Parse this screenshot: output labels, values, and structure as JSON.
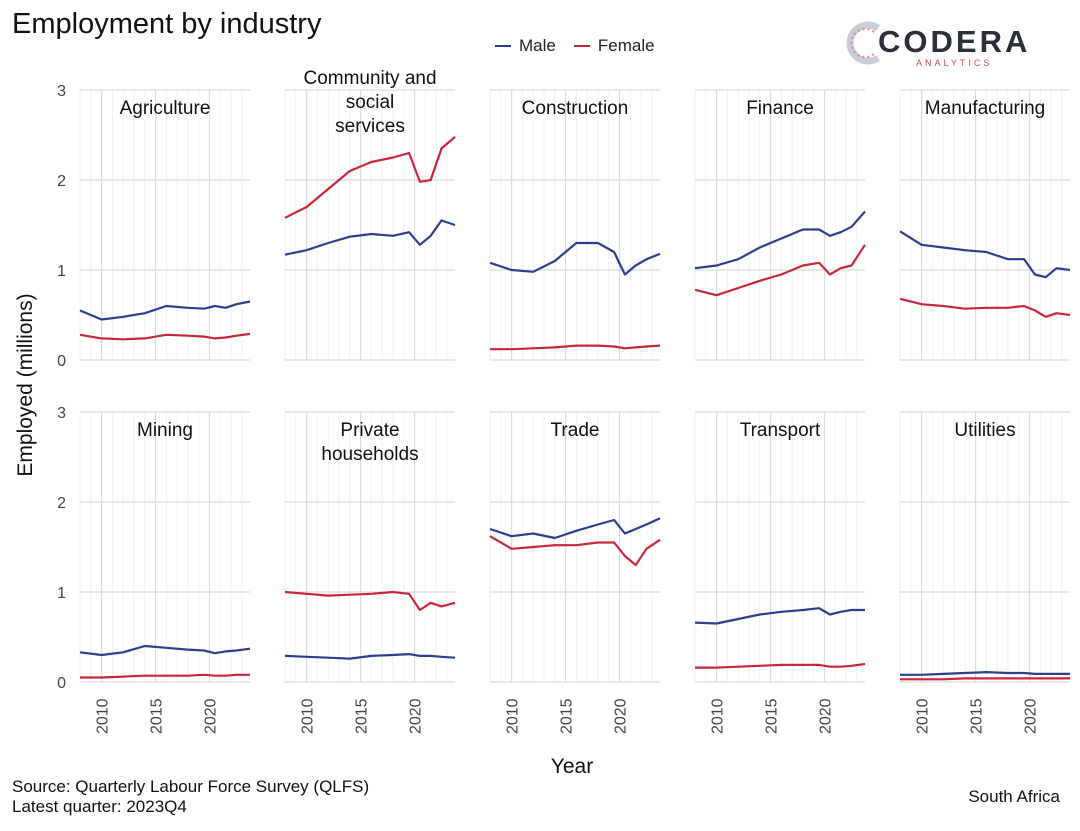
{
  "title": "Employment by industry",
  "legend": [
    {
      "label": "Male",
      "color": "#2d3e8f"
    },
    {
      "label": "Female",
      "color": "#c8263b"
    }
  ],
  "logo": {
    "word": "CODERA",
    "sub": "ANALYTICS"
  },
  "footer": {
    "source": "Source: Quarterly Labour Force Survey (QLFS)",
    "latest": "Latest quarter: 2023Q4",
    "country": "South Africa"
  },
  "chart_data": {
    "type": "line",
    "xlabel": "Year",
    "ylabel": "Employed (millions)",
    "xlim": [
      2008,
      2023.75
    ],
    "x_ticks": [
      2010,
      2015,
      2020
    ],
    "ylim": [
      0,
      3
    ],
    "y_ticks": [
      0,
      1,
      2,
      3
    ],
    "grid": true,
    "legend_position": "top",
    "x": [
      2008,
      2010,
      2012,
      2014,
      2016,
      2018,
      2019.5,
      2020.5,
      2021.5,
      2022.5,
      2023.75
    ],
    "panels": [
      {
        "title": "Agriculture",
        "series": [
          {
            "name": "Male",
            "values": [
              0.55,
              0.45,
              0.48,
              0.52,
              0.6,
              0.58,
              0.57,
              0.6,
              0.58,
              0.62,
              0.65
            ]
          },
          {
            "name": "Female",
            "values": [
              0.28,
              0.24,
              0.23,
              0.24,
              0.28,
              0.27,
              0.26,
              0.24,
              0.25,
              0.27,
              0.29
            ]
          }
        ]
      },
      {
        "title": "Community and social services",
        "series": [
          {
            "name": "Male",
            "values": [
              1.17,
              1.22,
              1.3,
              1.37,
              1.4,
              1.38,
              1.42,
              1.28,
              1.38,
              1.55,
              1.5
            ]
          },
          {
            "name": "Female",
            "values": [
              1.58,
              1.7,
              1.9,
              2.1,
              2.2,
              2.25,
              2.3,
              1.98,
              2.0,
              2.35,
              2.48
            ]
          }
        ]
      },
      {
        "title": "Construction",
        "series": [
          {
            "name": "Male",
            "values": [
              1.08,
              1.0,
              0.98,
              1.1,
              1.3,
              1.3,
              1.2,
              0.95,
              1.05,
              1.12,
              1.18
            ]
          },
          {
            "name": "Female",
            "values": [
              0.12,
              0.12,
              0.13,
              0.14,
              0.16,
              0.16,
              0.15,
              0.13,
              0.14,
              0.15,
              0.16
            ]
          }
        ]
      },
      {
        "title": "Finance",
        "series": [
          {
            "name": "Male",
            "values": [
              1.02,
              1.05,
              1.12,
              1.25,
              1.35,
              1.45,
              1.45,
              1.38,
              1.42,
              1.48,
              1.65
            ]
          },
          {
            "name": "Female",
            "values": [
              0.78,
              0.72,
              0.8,
              0.88,
              0.95,
              1.05,
              1.08,
              0.95,
              1.02,
              1.05,
              1.28
            ]
          }
        ]
      },
      {
        "title": "Manufacturing",
        "series": [
          {
            "name": "Male",
            "values": [
              1.43,
              1.28,
              1.25,
              1.22,
              1.2,
              1.12,
              1.12,
              0.95,
              0.92,
              1.02,
              1.0
            ]
          },
          {
            "name": "Female",
            "values": [
              0.68,
              0.62,
              0.6,
              0.57,
              0.58,
              0.58,
              0.6,
              0.55,
              0.48,
              0.52,
              0.5
            ]
          }
        ]
      },
      {
        "title": "Mining",
        "series": [
          {
            "name": "Male",
            "values": [
              0.33,
              0.3,
              0.33,
              0.4,
              0.38,
              0.36,
              0.35,
              0.32,
              0.34,
              0.35,
              0.37
            ]
          },
          {
            "name": "Female",
            "values": [
              0.05,
              0.05,
              0.06,
              0.07,
              0.07,
              0.07,
              0.08,
              0.07,
              0.07,
              0.08,
              0.08
            ]
          }
        ]
      },
      {
        "title": "Private households",
        "series": [
          {
            "name": "Male",
            "values": [
              0.29,
              0.28,
              0.27,
              0.26,
              0.29,
              0.3,
              0.31,
              0.29,
              0.29,
              0.28,
              0.27
            ]
          },
          {
            "name": "Female",
            "values": [
              1.0,
              0.98,
              0.96,
              0.97,
              0.98,
              1.0,
              0.98,
              0.8,
              0.88,
              0.84,
              0.88
            ]
          }
        ]
      },
      {
        "title": "Trade",
        "series": [
          {
            "name": "Male",
            "values": [
              1.7,
              1.62,
              1.65,
              1.6,
              1.68,
              1.75,
              1.8,
              1.65,
              1.7,
              1.75,
              1.82
            ]
          },
          {
            "name": "Female",
            "values": [
              1.62,
              1.48,
              1.5,
              1.52,
              1.52,
              1.55,
              1.55,
              1.4,
              1.3,
              1.48,
              1.58
            ]
          }
        ]
      },
      {
        "title": "Transport",
        "series": [
          {
            "name": "Male",
            "values": [
              0.66,
              0.65,
              0.7,
              0.75,
              0.78,
              0.8,
              0.82,
              0.75,
              0.78,
              0.8,
              0.8
            ]
          },
          {
            "name": "Female",
            "values": [
              0.16,
              0.16,
              0.17,
              0.18,
              0.19,
              0.19,
              0.19,
              0.17,
              0.17,
              0.18,
              0.2
            ]
          }
        ]
      },
      {
        "title": "Utilities",
        "series": [
          {
            "name": "Male",
            "values": [
              0.08,
              0.08,
              0.09,
              0.1,
              0.11,
              0.1,
              0.1,
              0.09,
              0.09,
              0.09,
              0.09
            ]
          },
          {
            "name": "Female",
            "values": [
              0.03,
              0.03,
              0.03,
              0.04,
              0.04,
              0.04,
              0.04,
              0.04,
              0.04,
              0.04,
              0.04
            ]
          }
        ]
      }
    ]
  }
}
